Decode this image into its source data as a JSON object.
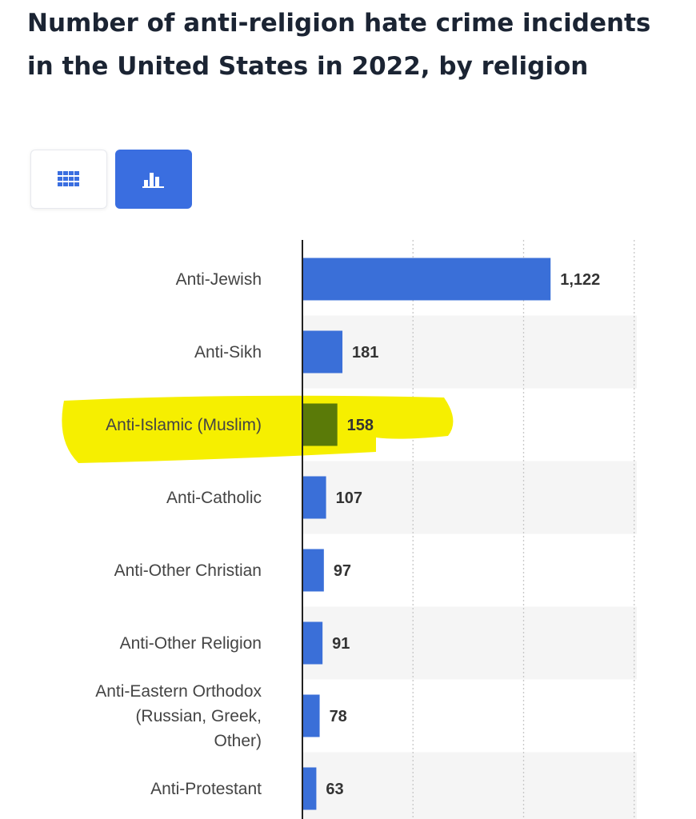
{
  "title": "Number of anti-religion hate crime incidents in the United States in 2022, by religion",
  "view_toggle": {
    "table_icon": "grid-icon",
    "chart_icon": "bar-chart-icon",
    "active": "chart"
  },
  "colors": {
    "bar": "#3a6fd8",
    "highlight_bar": "#5a7a08",
    "highlight_marker": "#f6ef00",
    "band": "#f5f5f5",
    "grid": "#c8c8c8"
  },
  "chart_data": {
    "type": "bar",
    "orientation": "horizontal",
    "categories": [
      "Anti-Jewish",
      "Anti-Sikh",
      "Anti-Islamic (Muslim)",
      "Anti-Catholic",
      "Anti-Other Christian",
      "Anti-Other Religion",
      "Anti-Eastern Orthodox (Russian, Greek, Other)",
      "Anti-Protestant"
    ],
    "category_lines": [
      [
        "Anti-Jewish"
      ],
      [
        "Anti-Sikh"
      ],
      [
        "Anti-Islamic (Muslim)"
      ],
      [
        "Anti-Catholic"
      ],
      [
        "Anti-Other Christian"
      ],
      [
        "Anti-Other Religion"
      ],
      [
        "Anti-Eastern Orthodox",
        "(Russian, Greek,",
        "Other)"
      ],
      [
        "Anti-Protestant"
      ]
    ],
    "values": [
      1122,
      181,
      158,
      107,
      97,
      91,
      78,
      63
    ],
    "value_labels": [
      "1,122",
      "181",
      "158",
      "107",
      "97",
      "91",
      "78",
      "63"
    ],
    "highlighted": "Anti-Islamic (Muslim)",
    "xlim": [
      0,
      1500
    ],
    "grid": true
  }
}
